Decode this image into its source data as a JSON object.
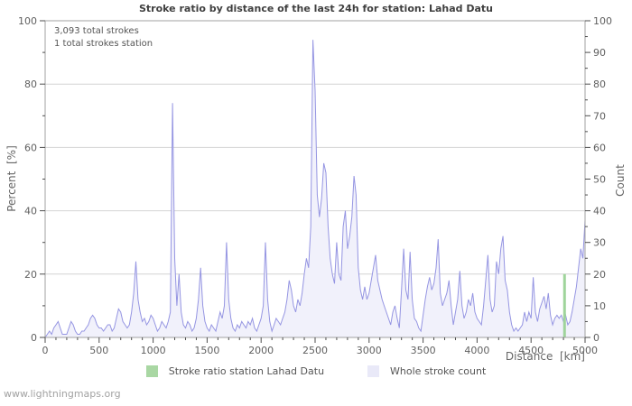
{
  "title": "Stroke ratio by distance of the last 24h for station: Lahad Datu",
  "annotations": {
    "line1": "3,093 total strokes",
    "line2": "1 total strokes station"
  },
  "watermark": "www.lightningmaps.org",
  "axes": {
    "left_title": "Percent  [%]",
    "right_title": "Count",
    "x_title": "Distance  [km]"
  },
  "legend": [
    {
      "label": "Stroke ratio station Lahad Datu",
      "color": "#a9d7a3"
    },
    {
      "label": "Whole stroke count",
      "color": "#e9e9f8"
    }
  ],
  "colors": {
    "count_line": "#9595e2",
    "count_fill": "#f1f1fb",
    "station_line": "#9fd49b",
    "grid": "#d4d4d4",
    "border": "#a0a0a0",
    "tick": "#4d4d4d",
    "tick_label": "#606060"
  },
  "chart_data": {
    "type": "area",
    "title": "Stroke ratio by distance of the last 24h for station: Lahad Datu",
    "xlabel": "Distance [km]",
    "ylabel_left": "Percent [%]",
    "ylabel_right": "Count",
    "x_range": [
      0,
      5000
    ],
    "y_left_range": [
      0,
      100
    ],
    "y_right_range": [
      0,
      100
    ],
    "grid_y": [
      20,
      40,
      60,
      80
    ],
    "x_major_ticks": [
      0,
      500,
      1000,
      1500,
      2000,
      2500,
      3000,
      3500,
      4000,
      4500,
      5000
    ],
    "x_minor_step": 100,
    "left_major_ticks": [
      0,
      20,
      40,
      60,
      80,
      100
    ],
    "left_minor_step": 10,
    "right_major_ticks": [
      0,
      10,
      20,
      30,
      40,
      50,
      60,
      70,
      80,
      90,
      100
    ],
    "right_minor_step": 5,
    "legend_position": "bottom",
    "series": [
      {
        "name": "Whole stroke count",
        "axis": "right",
        "style": "area",
        "points": [
          [
            0,
            0
          ],
          [
            20,
            1
          ],
          [
            40,
            2
          ],
          [
            60,
            1
          ],
          [
            80,
            3
          ],
          [
            100,
            4
          ],
          [
            120,
            5
          ],
          [
            140,
            3
          ],
          [
            160,
            1
          ],
          [
            180,
            1
          ],
          [
            200,
            1
          ],
          [
            220,
            3
          ],
          [
            240,
            5
          ],
          [
            260,
            4
          ],
          [
            280,
            2
          ],
          [
            300,
            1
          ],
          [
            320,
            1
          ],
          [
            340,
            2
          ],
          [
            360,
            2
          ],
          [
            380,
            3
          ],
          [
            400,
            4
          ],
          [
            420,
            6
          ],
          [
            440,
            7
          ],
          [
            460,
            6
          ],
          [
            480,
            4
          ],
          [
            500,
            3
          ],
          [
            520,
            3
          ],
          [
            540,
            2
          ],
          [
            560,
            3
          ],
          [
            580,
            4
          ],
          [
            600,
            4
          ],
          [
            620,
            2
          ],
          [
            640,
            3
          ],
          [
            660,
            6
          ],
          [
            680,
            9
          ],
          [
            700,
            8
          ],
          [
            720,
            5
          ],
          [
            740,
            4
          ],
          [
            760,
            3
          ],
          [
            780,
            4
          ],
          [
            800,
            8
          ],
          [
            820,
            14
          ],
          [
            840,
            24
          ],
          [
            860,
            12
          ],
          [
            880,
            8
          ],
          [
            900,
            5
          ],
          [
            920,
            6
          ],
          [
            940,
            4
          ],
          [
            960,
            5
          ],
          [
            980,
            7
          ],
          [
            1000,
            6
          ],
          [
            1020,
            4
          ],
          [
            1040,
            2
          ],
          [
            1060,
            3
          ],
          [
            1080,
            5
          ],
          [
            1100,
            4
          ],
          [
            1120,
            3
          ],
          [
            1140,
            5
          ],
          [
            1160,
            8
          ],
          [
            1180,
            74
          ],
          [
            1200,
            25
          ],
          [
            1220,
            10
          ],
          [
            1240,
            20
          ],
          [
            1260,
            8
          ],
          [
            1280,
            4
          ],
          [
            1300,
            3
          ],
          [
            1320,
            5
          ],
          [
            1340,
            4
          ],
          [
            1360,
            2
          ],
          [
            1380,
            3
          ],
          [
            1400,
            6
          ],
          [
            1420,
            12
          ],
          [
            1440,
            22
          ],
          [
            1460,
            10
          ],
          [
            1480,
            5
          ],
          [
            1500,
            3
          ],
          [
            1520,
            2
          ],
          [
            1540,
            4
          ],
          [
            1560,
            3
          ],
          [
            1580,
            2
          ],
          [
            1600,
            5
          ],
          [
            1620,
            8
          ],
          [
            1640,
            6
          ],
          [
            1660,
            10
          ],
          [
            1680,
            30
          ],
          [
            1700,
            12
          ],
          [
            1720,
            6
          ],
          [
            1740,
            3
          ],
          [
            1760,
            2
          ],
          [
            1780,
            4
          ],
          [
            1800,
            3
          ],
          [
            1820,
            5
          ],
          [
            1840,
            4
          ],
          [
            1860,
            3
          ],
          [
            1880,
            5
          ],
          [
            1900,
            4
          ],
          [
            1920,
            6
          ],
          [
            1940,
            3
          ],
          [
            1960,
            2
          ],
          [
            1980,
            4
          ],
          [
            2000,
            6
          ],
          [
            2020,
            10
          ],
          [
            2040,
            30
          ],
          [
            2060,
            12
          ],
          [
            2080,
            5
          ],
          [
            2100,
            2
          ],
          [
            2120,
            4
          ],
          [
            2140,
            6
          ],
          [
            2160,
            5
          ],
          [
            2180,
            4
          ],
          [
            2200,
            6
          ],
          [
            2220,
            8
          ],
          [
            2240,
            12
          ],
          [
            2260,
            18
          ],
          [
            2280,
            15
          ],
          [
            2300,
            10
          ],
          [
            2320,
            8
          ],
          [
            2340,
            12
          ],
          [
            2360,
            10
          ],
          [
            2380,
            14
          ],
          [
            2400,
            20
          ],
          [
            2420,
            25
          ],
          [
            2440,
            22
          ],
          [
            2460,
            35
          ],
          [
            2480,
            94
          ],
          [
            2500,
            78
          ],
          [
            2520,
            45
          ],
          [
            2540,
            38
          ],
          [
            2560,
            44
          ],
          [
            2580,
            55
          ],
          [
            2600,
            52
          ],
          [
            2620,
            35
          ],
          [
            2640,
            25
          ],
          [
            2660,
            20
          ],
          [
            2680,
            17
          ],
          [
            2700,
            30
          ],
          [
            2720,
            20
          ],
          [
            2740,
            18
          ],
          [
            2760,
            35
          ],
          [
            2780,
            40
          ],
          [
            2800,
            28
          ],
          [
            2820,
            32
          ],
          [
            2840,
            38
          ],
          [
            2860,
            51
          ],
          [
            2880,
            45
          ],
          [
            2900,
            22
          ],
          [
            2920,
            15
          ],
          [
            2940,
            12
          ],
          [
            2960,
            16
          ],
          [
            2980,
            12
          ],
          [
            3000,
            14
          ],
          [
            3020,
            18
          ],
          [
            3040,
            22
          ],
          [
            3060,
            26
          ],
          [
            3080,
            18
          ],
          [
            3100,
            15
          ],
          [
            3120,
            12
          ],
          [
            3140,
            10
          ],
          [
            3160,
            8
          ],
          [
            3180,
            6
          ],
          [
            3200,
            4
          ],
          [
            3220,
            8
          ],
          [
            3240,
            10
          ],
          [
            3260,
            6
          ],
          [
            3280,
            3
          ],
          [
            3300,
            15
          ],
          [
            3320,
            28
          ],
          [
            3340,
            15
          ],
          [
            3360,
            12
          ],
          [
            3380,
            27
          ],
          [
            3400,
            12
          ],
          [
            3420,
            6
          ],
          [
            3440,
            5
          ],
          [
            3460,
            3
          ],
          [
            3480,
            2
          ],
          [
            3500,
            7
          ],
          [
            3520,
            12
          ],
          [
            3540,
            16
          ],
          [
            3560,
            19
          ],
          [
            3580,
            15
          ],
          [
            3600,
            17
          ],
          [
            3620,
            22
          ],
          [
            3640,
            31
          ],
          [
            3660,
            14
          ],
          [
            3680,
            10
          ],
          [
            3700,
            12
          ],
          [
            3720,
            14
          ],
          [
            3740,
            18
          ],
          [
            3760,
            10
          ],
          [
            3780,
            4
          ],
          [
            3800,
            8
          ],
          [
            3820,
            12
          ],
          [
            3840,
            21
          ],
          [
            3860,
            10
          ],
          [
            3880,
            6
          ],
          [
            3900,
            8
          ],
          [
            3920,
            12
          ],
          [
            3940,
            10
          ],
          [
            3960,
            14
          ],
          [
            3980,
            8
          ],
          [
            4000,
            6
          ],
          [
            4020,
            5
          ],
          [
            4040,
            4
          ],
          [
            4060,
            10
          ],
          [
            4080,
            18
          ],
          [
            4100,
            26
          ],
          [
            4120,
            12
          ],
          [
            4140,
            8
          ],
          [
            4160,
            10
          ],
          [
            4180,
            24
          ],
          [
            4200,
            20
          ],
          [
            4220,
            28
          ],
          [
            4240,
            32
          ],
          [
            4260,
            18
          ],
          [
            4280,
            15
          ],
          [
            4300,
            8
          ],
          [
            4320,
            4
          ],
          [
            4340,
            2
          ],
          [
            4360,
            3
          ],
          [
            4380,
            2
          ],
          [
            4400,
            3
          ],
          [
            4420,
            4
          ],
          [
            4440,
            8
          ],
          [
            4460,
            5
          ],
          [
            4480,
            8
          ],
          [
            4500,
            6
          ],
          [
            4520,
            19
          ],
          [
            4540,
            8
          ],
          [
            4560,
            5
          ],
          [
            4580,
            9
          ],
          [
            4600,
            11
          ],
          [
            4620,
            13
          ],
          [
            4640,
            9
          ],
          [
            4660,
            14
          ],
          [
            4680,
            7
          ],
          [
            4700,
            4
          ],
          [
            4720,
            6
          ],
          [
            4740,
            7
          ],
          [
            4760,
            6
          ],
          [
            4780,
            7
          ],
          [
            4800,
            5
          ],
          [
            4820,
            7
          ],
          [
            4840,
            4
          ],
          [
            4860,
            5
          ],
          [
            4880,
            8
          ],
          [
            4900,
            12
          ],
          [
            4920,
            16
          ],
          [
            4940,
            22
          ],
          [
            4960,
            28
          ],
          [
            4980,
            25
          ],
          [
            5000,
            37
          ]
        ]
      },
      {
        "name": "Stroke ratio station Lahad Datu",
        "axis": "left",
        "style": "vline",
        "points": [
          [
            4810,
            0
          ],
          [
            4810,
            20
          ]
        ]
      }
    ]
  }
}
